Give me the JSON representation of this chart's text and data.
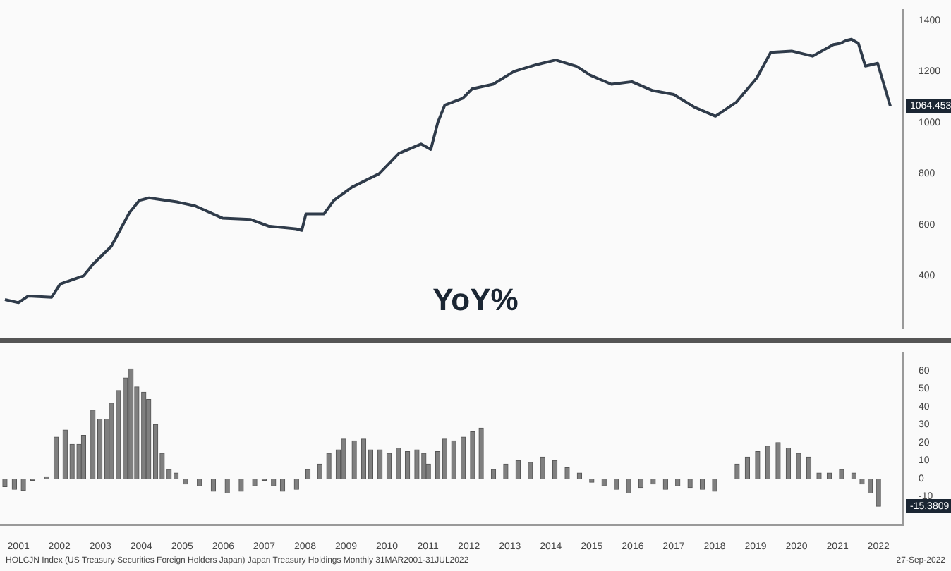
{
  "chart_data": [
    {
      "type": "line",
      "color": "#2f3b4a",
      "tick_labels": "y",
      "xlim": [
        2001.05,
        2023.1
      ],
      "ylim": [
        195,
        1440
      ],
      "yticks": [
        400,
        600,
        800,
        1000,
        1200,
        1400
      ],
      "x": [
        2001.17,
        2001.5,
        2001.74,
        2002.31,
        2002.52,
        2003.09,
        2003.33,
        2003.77,
        2004.21,
        2004.45,
        2004.69,
        2005.37,
        2005.81,
        2006.48,
        2007.16,
        2007.6,
        2008.28,
        2008.42,
        2008.52,
        2008.96,
        2009.2,
        2009.64,
        2010.31,
        2010.79,
        2011.33,
        2011.57,
        2011.74,
        2011.91,
        2012.35,
        2012.58,
        2013.09,
        2013.6,
        2014.11,
        2014.62,
        2015.13,
        2015.47,
        2015.98,
        2016.48,
        2016.99,
        2017.5,
        2018.01,
        2018.52,
        2019.03,
        2019.53,
        2019.87,
        2020.38,
        2020.89,
        2021.4,
        2021.57,
        2021.71,
        2021.84,
        2022.01,
        2022.18,
        2022.48,
        2022.79
      ],
      "values": [
        307,
        295,
        321,
        316,
        368,
        400,
        447,
        516,
        647,
        695,
        705,
        689,
        674,
        626,
        621,
        595,
        584,
        578,
        642,
        642,
        695,
        747,
        800,
        879,
        916,
        895,
        1000,
        1068,
        1095,
        1132,
        1150,
        1200,
        1225,
        1245,
        1220,
        1185,
        1150,
        1160,
        1125,
        1110,
        1060,
        1025,
        1080,
        1175,
        1275,
        1280,
        1260,
        1305,
        1310,
        1321,
        1326,
        1310,
        1221,
        1232,
        1064.453
      ],
      "annotations": [
        "1064.453"
      ]
    },
    {
      "type": "bar",
      "title": "YoY%",
      "color": "#7f7f7f",
      "xlim": [
        2001.05,
        2023.1
      ],
      "ylim": [
        -26,
        70
      ],
      "yticks": [
        -10,
        0,
        10,
        20,
        30,
        40,
        50,
        60
      ],
      "xticks": [
        {
          "value": 2001.5,
          "label": "2001"
        },
        {
          "value": 2002.5,
          "label": "2002"
        },
        {
          "value": 2003.5,
          "label": "2003"
        },
        {
          "value": 2004.5,
          "label": "2004"
        },
        {
          "value": 2005.5,
          "label": "2005"
        },
        {
          "value": 2006.5,
          "label": "2006"
        },
        {
          "value": 2007.5,
          "label": "2007"
        },
        {
          "value": 2008.5,
          "label": "2008"
        },
        {
          "value": 2009.5,
          "label": "2009"
        },
        {
          "value": 2010.5,
          "label": "2010"
        },
        {
          "value": 2011.5,
          "label": "2011"
        },
        {
          "value": 2012.5,
          "label": "2012"
        },
        {
          "value": 2013.5,
          "label": "2013"
        },
        {
          "value": 2014.5,
          "label": "2014"
        },
        {
          "value": 2015.5,
          "label": "2015"
        },
        {
          "value": 2016.5,
          "label": "2016"
        },
        {
          "value": 2017.5,
          "label": "2017"
        },
        {
          "value": 2018.5,
          "label": "2018"
        },
        {
          "value": 2019.5,
          "label": "2019"
        },
        {
          "value": 2020.5,
          "label": "2020"
        },
        {
          "value": 2021.5,
          "label": "2021"
        },
        {
          "value": 2022.5,
          "label": "2022"
        }
      ],
      "x": [
        2001.17,
        2001.4,
        2001.62,
        2001.85,
        2002.19,
        2002.42,
        2002.64,
        2002.81,
        2002.98,
        2003.09,
        2003.32,
        2003.49,
        2003.66,
        2003.77,
        2003.94,
        2004.11,
        2004.25,
        2004.39,
        2004.56,
        2004.68,
        2004.85,
        2005.01,
        2005.18,
        2005.35,
        2005.58,
        2005.92,
        2006.26,
        2006.6,
        2006.94,
        2007.27,
        2007.5,
        2007.73,
        2007.95,
        2008.29,
        2008.57,
        2008.86,
        2009.08,
        2009.31,
        2009.44,
        2009.7,
        2009.93,
        2010.1,
        2010.33,
        2010.55,
        2010.78,
        2011.0,
        2011.23,
        2011.4,
        2011.51,
        2011.74,
        2011.91,
        2012.13,
        2012.36,
        2012.59,
        2012.8,
        2013.1,
        2013.4,
        2013.7,
        2014.0,
        2014.3,
        2014.6,
        2014.9,
        2015.2,
        2015.5,
        2015.8,
        2016.1,
        2016.4,
        2016.7,
        2017.0,
        2017.3,
        2017.6,
        2017.9,
        2018.2,
        2018.5,
        2018.8,
        2019.05,
        2019.3,
        2019.55,
        2019.8,
        2020.05,
        2020.3,
        2020.55,
        2020.8,
        2021.05,
        2021.3,
        2021.6,
        2021.9,
        2022.1,
        2022.3,
        2022.5
      ],
      "values": [
        -4.5,
        -6,
        -6.5,
        -1,
        1,
        23,
        27,
        19,
        19,
        24,
        38,
        33,
        33,
        42,
        49,
        56,
        61,
        51,
        48,
        44,
        30,
        14,
        5,
        3,
        -3,
        -4,
        -7,
        -8,
        -7,
        -4,
        -1,
        -4,
        -7,
        -6,
        5,
        8,
        14,
        16,
        22,
        21,
        22,
        16,
        16,
        14,
        17,
        15,
        16,
        14,
        8,
        15,
        22,
        21,
        23,
        26,
        28,
        5,
        8,
        10,
        9,
        12,
        10,
        6,
        3,
        -2,
        -4,
        -6,
        -8,
        -5,
        -3,
        -6,
        -4,
        -5,
        -6,
        -7,
        0,
        8,
        12,
        15,
        18,
        20,
        17,
        14,
        12,
        3,
        3,
        5,
        3,
        -3,
        -8,
        -15.38
      ],
      "annotations": [
        "-15.3809",
        "HOLCJN Index (US Treasury Securities Foreign Holders Japan) Japan Treasury Holdings Monthly 31MAR2001-31JUL2022",
        "27-Sep-2022"
      ]
    }
  ]
}
